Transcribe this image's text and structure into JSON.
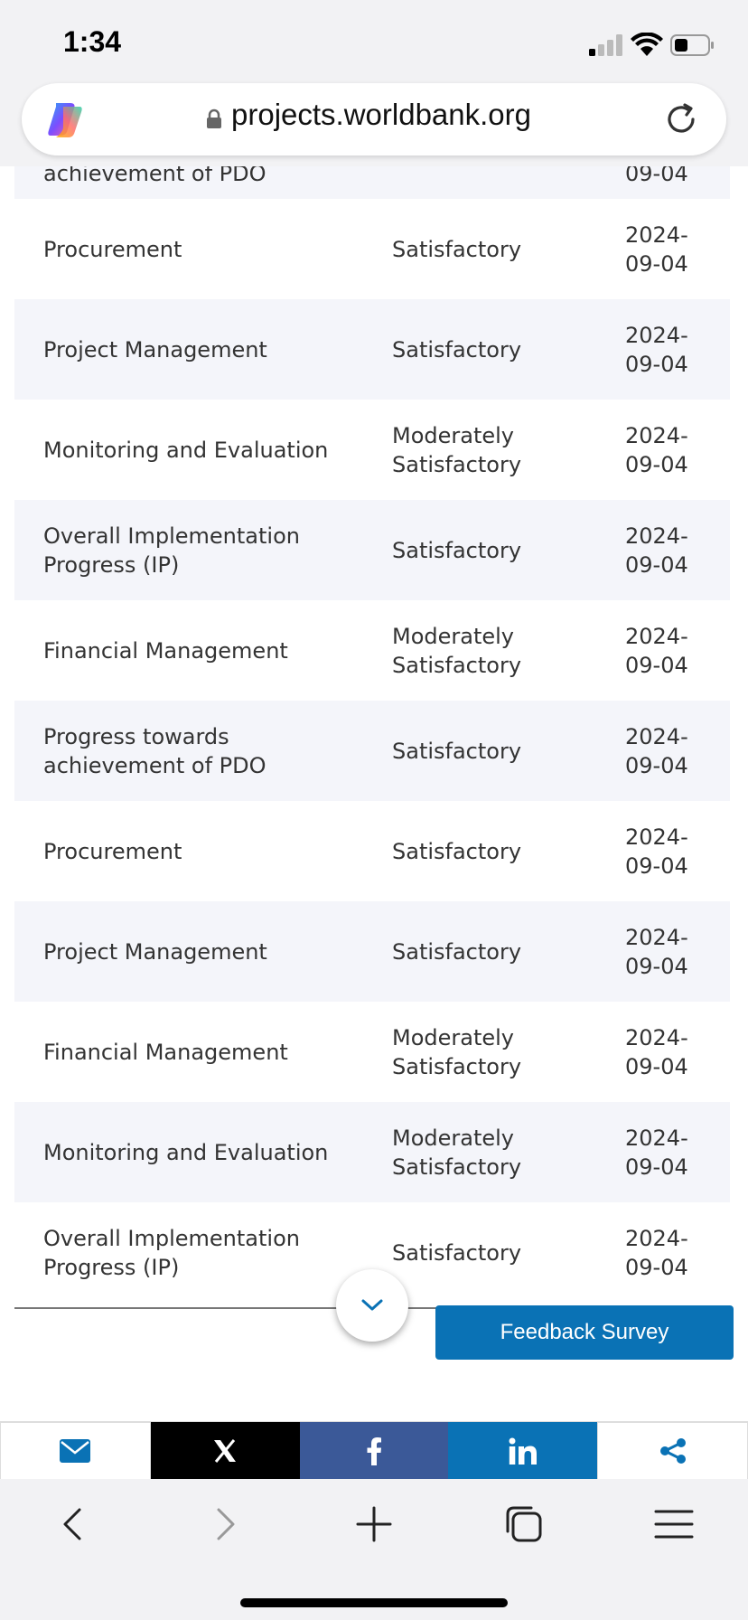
{
  "status_bar": {
    "time": "1:34"
  },
  "browser": {
    "url": "projects.worldbank.org"
  },
  "table": {
    "partial_row": {
      "indicator": "achievement of PDO",
      "rating": "",
      "date": "09-04"
    },
    "rows": [
      {
        "indicator": "Procurement",
        "rating": "Satisfactory",
        "date": "2024-\n09-04"
      },
      {
        "indicator": "Project Management",
        "rating": "Satisfactory",
        "date": "2024-\n09-04"
      },
      {
        "indicator": "Monitoring and Evaluation",
        "rating": "Moderately\nSatisfactory",
        "date": "2024-\n09-04"
      },
      {
        "indicator": "Overall Implementation\nProgress (IP)",
        "rating": "Satisfactory",
        "date": "2024-\n09-04"
      },
      {
        "indicator": "Financial Management",
        "rating": "Moderately\nSatisfactory",
        "date": "2024-\n09-04"
      },
      {
        "indicator": "Progress towards\nachievement of PDO",
        "rating": "Satisfactory",
        "date": "2024-\n09-04"
      },
      {
        "indicator": "Procurement",
        "rating": "Satisfactory",
        "date": "2024-\n09-04"
      },
      {
        "indicator": "Project Management",
        "rating": "Satisfactory",
        "date": "2024-\n09-04"
      },
      {
        "indicator": "Financial Management",
        "rating": "Moderately\nSatisfactory",
        "date": "2024-\n09-04"
      },
      {
        "indicator": "Monitoring and Evaluation",
        "rating": "Moderately\nSatisfactory",
        "date": "2024-\n09-04"
      },
      {
        "indicator": "Overall Implementation\nProgress (IP)",
        "rating": "Satisfactory",
        "date": "2024-\n09-04"
      }
    ]
  },
  "feedback": {
    "label": "Feedback Survey"
  },
  "share_bar": {
    "items": [
      {
        "icon": "email-icon",
        "color": "#0a72b5"
      },
      {
        "icon": "x-icon",
        "color": "#000000"
      },
      {
        "icon": "facebook-icon",
        "color": "#3b5998"
      },
      {
        "icon": "linkedin-icon",
        "color": "#0a72b5"
      },
      {
        "icon": "share-icon",
        "color": "#0a72b5"
      }
    ]
  },
  "toolbar": {
    "icons": [
      "back-icon",
      "forward-icon",
      "new-tab-icon",
      "tabs-icon",
      "menu-icon"
    ]
  }
}
